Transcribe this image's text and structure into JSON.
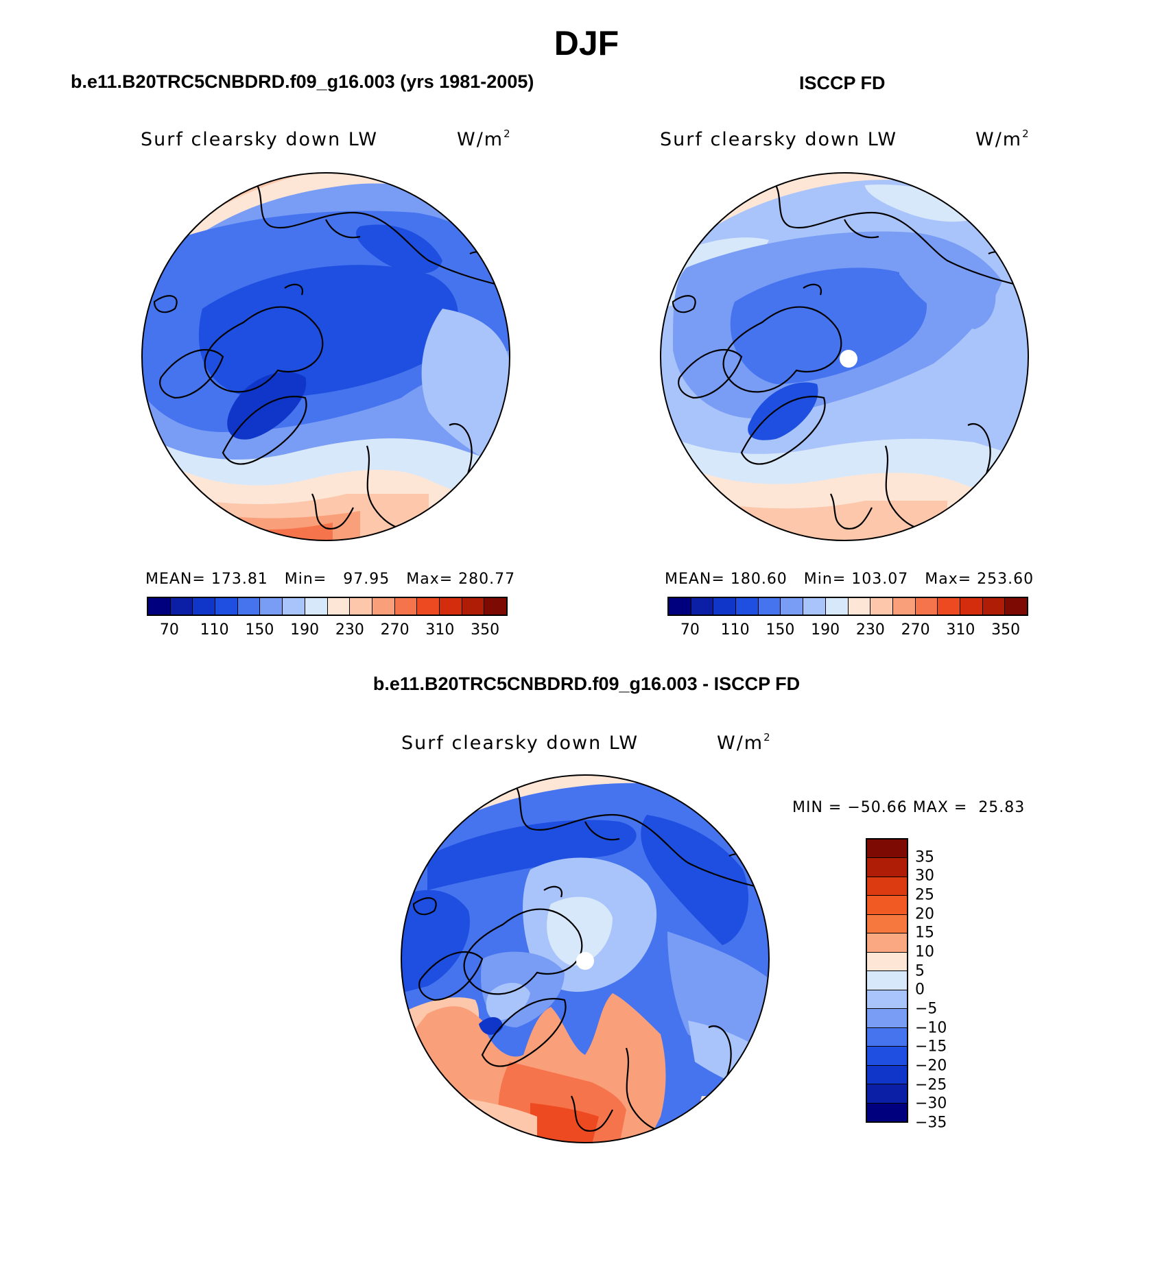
{
  "title": "DJF",
  "panels": {
    "model": {
      "title": "b.e11.B20TRC5CNBDRD.f09_g16.003 (yrs 1981-2005)",
      "label": "Surf clearsky down LW",
      "units": "W/m",
      "units_sup": "2",
      "mean_label": "MEAN=",
      "mean": "173.81",
      "min_label": "Min=",
      "min": "97.95",
      "max_label": "Max=",
      "max": "280.77"
    },
    "obs": {
      "title": "ISCCP FD",
      "label": "Surf clearsky down LW",
      "units": "W/m",
      "units_sup": "2",
      "mean_label": "MEAN=",
      "mean": "180.60",
      "min_label": "Min=",
      "min": "103.07",
      "max_label": "Max=",
      "max": "253.60"
    },
    "diff": {
      "title": "b.e11.B20TRC5CNBDRD.f09_g16.003 - ISCCP FD",
      "label": "Surf clearsky down LW",
      "units": "W/m",
      "units_sup": "2",
      "min_label": "MIN =",
      "min": "−50.66",
      "max_label": "MAX =",
      "max": "25.83"
    }
  },
  "colorbar_abs": {
    "colors": [
      "#00007f",
      "#0a1fa6",
      "#0f36c8",
      "#1e4fe0",
      "#4674ee",
      "#799df5",
      "#a9c4fa",
      "#d8e8fb",
      "#fde6d6",
      "#fcc7ab",
      "#f99f79",
      "#f6744b",
      "#ee4a21",
      "#d42d0d",
      "#b01d07",
      "#7e0a04"
    ],
    "ticks": [
      "70",
      "110",
      "150",
      "190",
      "230",
      "270",
      "310",
      "350"
    ]
  },
  "colorbar_diff": {
    "colors": [
      "#7e0a04",
      "#b01d07",
      "#dc3a10",
      "#f25a24",
      "#f6783f",
      "#f9a882",
      "#fde6d6",
      "#d8e8fb",
      "#a9c4fa",
      "#799df5",
      "#4674ee",
      "#1e4fe0",
      "#0f36c8",
      "#0a1fa6",
      "#00007f"
    ],
    "ticks": [
      "35",
      "30",
      "25",
      "20",
      "15",
      "10",
      "5",
      "0",
      "−5",
      "−10",
      "−15",
      "−20",
      "−25",
      "−30",
      "−35"
    ]
  },
  "map_colors": {
    "deep": "#0f36c8",
    "mid": "#1e4fe0",
    "med": "#4674ee",
    "light": "#799df5",
    "pale": "#a9c4fa",
    "ice": "#d8e8fb",
    "peach": "#fde6d6",
    "salmon": "#fcc7ab",
    "orange": "#f99f79",
    "red": "#f6744b",
    "dred": "#ee4a21"
  }
}
